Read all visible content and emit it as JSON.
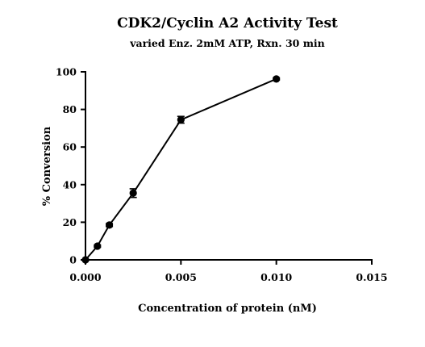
{
  "chart_data": {
    "type": "line",
    "title": "CDK2/Cyclin A2 Activity Test",
    "subtitle": "varied Enz. 2mM ATP, Rxn. 30 min",
    "xlabel": "Concentration of protein (nM)",
    "ylabel": "% Conversion",
    "xlim": [
      0,
      0.015
    ],
    "ylim": [
      0,
      100
    ],
    "x_ticks": [
      "0.000",
      "0.005",
      "0.010",
      "0.015"
    ],
    "x_tick_values": [
      0,
      0.005,
      0.01,
      0.015
    ],
    "y_ticks": [
      "0",
      "20",
      "40",
      "60",
      "80",
      "100"
    ],
    "y_tick_values": [
      0,
      20,
      40,
      60,
      80,
      100
    ],
    "grid": false,
    "legend": "none",
    "colors": {
      "line": "#000000",
      "marker": "#000000"
    },
    "series": [
      {
        "x": [
          0,
          0.000625,
          0.00125,
          0.0025,
          0.005,
          0.01
        ],
        "y": [
          0,
          7.3,
          18.5,
          35.5,
          74.5,
          96.2
        ],
        "error": [
          0.3,
          0.6,
          0.8,
          2.3,
          1.8,
          0.6
        ]
      }
    ]
  }
}
